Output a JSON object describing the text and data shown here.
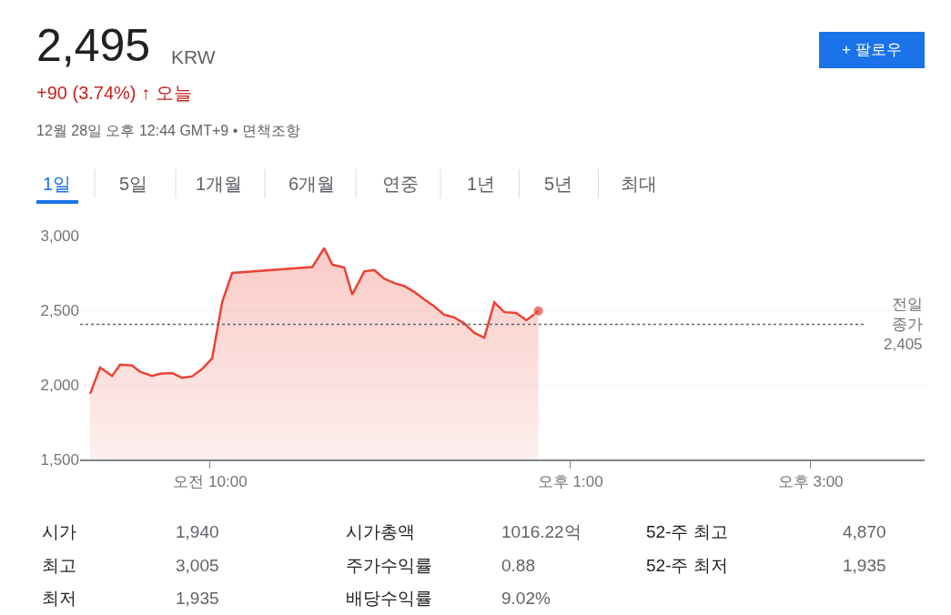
{
  "chart_data": {
    "type": "area",
    "title": "2,495",
    "subtitle": "+90 (3.74%) ↑ 오늘",
    "annotations": [
      "KRW",
      "12월 28일 오후 12:44 GMT+9 • 면책조항",
      "+ 팔로우",
      "1일",
      "5일",
      "1개월",
      "6개월",
      "연중",
      "1년",
      "5년",
      "최대",
      "시가",
      "1,940",
      "최고",
      "3,005",
      "최저",
      "1,935",
      "시가총액",
      "1016.22억",
      "주가수익률",
      "0.88",
      "배당수익률",
      "9.02%",
      "52-주 최고",
      "4,870",
      "52-주 최저",
      "1,935"
    ],
    "series": [
      {
        "color": "#ea4335",
        "x": [
          "--12-28T09:00",
          "--12-28T09:05",
          "--12-28T09:11",
          "--12-28T09:15",
          "--12-28T09:21",
          "--12-28T09:25",
          "--12-28T09:31",
          "--12-28T09:35",
          "--12-28T09:41",
          "--12-28T09:46",
          "--12-28T09:51",
          "--12-28T09:56",
          "--12-28T10:01",
          "--12-28T10:06",
          "--12-28T10:11",
          "--12-28T10:51",
          "--12-28T10:57",
          "--12-28T11:01",
          "--12-28T11:07",
          "--12-28T11:11",
          "--12-28T11:17",
          "--12-28T11:22",
          "--12-28T11:27",
          "--12-28T11:32",
          "--12-28T11:37",
          "--12-28T11:42",
          "--12-28T11:47",
          "--12-28T11:52",
          "--12-28T11:57",
          "--12-28T12:02",
          "--12-28T12:07",
          "--12-28T12:12",
          "--12-28T12:17",
          "--12-28T12:22",
          "--12-28T12:27",
          "--12-28T12:33",
          "--12-28T12:38",
          "--12-28T12:43",
          "--12-28T12:44"
        ],
        "values": [
          1940,
          2116,
          2060,
          2135,
          2130,
          2087,
          2060,
          2074,
          2079,
          2047,
          2057,
          2106,
          2177,
          2555,
          2750,
          2789,
          2916,
          2806,
          2787,
          2604,
          2760,
          2770,
          2711,
          2682,
          2662,
          2623,
          2572,
          2526,
          2469,
          2452,
          2411,
          2348,
          2316,
          2552,
          2487,
          2482,
          2433,
          2484,
          2495
        ]
      }
    ],
    "xlim": [
      "--12-28T08:55",
      "--12-28T15:57"
    ],
    "xticks": [
      {
        "value": "--12-28T10:00",
        "label": "오전 10:00"
      },
      {
        "value": "--12-28T13:00",
        "label": "오후 1:00"
      },
      {
        "value": "--12-28T15:00",
        "label": "오후 3:00"
      }
    ],
    "ylim": [
      1500,
      3000
    ],
    "yticks": [
      {
        "value": 1500,
        "label": "1,500"
      },
      {
        "value": 2000,
        "label": "2,000"
      },
      {
        "value": 2500,
        "label": "2,500"
      },
      {
        "value": 3000,
        "label": "3,000"
      }
    ],
    "ref_lines": [
      {
        "axis": "y",
        "value": 2405,
        "label": "전일\n종가\n2,405",
        "color": "#5f6368",
        "line_style": "dotted"
      }
    ],
    "grid": "y",
    "marker": "none",
    "line_style": "solid"
  }
}
